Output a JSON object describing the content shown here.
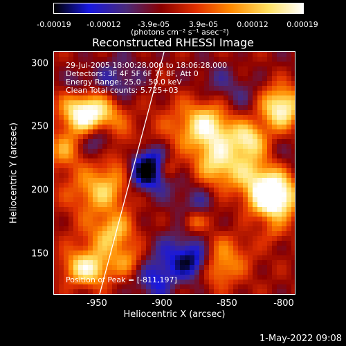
{
  "colorbar": {
    "ticks": [
      "-0.00019",
      "-0.00012",
      "-3.9e-05",
      "3.9e-05",
      "0.00012",
      "0.00019"
    ],
    "units_label": "(photons cm⁻² s⁻¹ asec⁻²)",
    "range": [
      -0.00019,
      0.00019
    ],
    "colormap": [
      "#000000",
      "#1818e0",
      "#4a2a7a",
      "#8a0000",
      "#e03000",
      "#ff8a00",
      "#ffe060",
      "#ffffff"
    ]
  },
  "title": "Reconstructed RHESSI Image",
  "annotations": {
    "time_range": "29-Jul-2005 18:00:28.000 to 18:06:28.000",
    "detectors": "Detectors: 3F 4F 5F 6F 7F 8F, Att 0",
    "energy_range": "Energy Range: 25.0 - 50.0 keV",
    "clean": "Clean    Total counts: 5.725+03",
    "peak": "Position of Peak = [-811,197]"
  },
  "axes": {
    "xlabel": "Heliocentric X (arcsec)",
    "ylabel": "Heliocentric Y (arcsec)",
    "xticks": [
      "-950",
      "-900",
      "-850",
      "-800"
    ],
    "yticks": [
      "300",
      "250",
      "200",
      "150"
    ],
    "xlim": [
      -980,
      -793
    ],
    "ylim": [
      117,
      309
    ]
  },
  "chart_data": {
    "type": "heatmap",
    "title": "Reconstructed RHESSI Image",
    "xlabel": "Heliocentric X (arcsec)",
    "ylabel": "Heliocentric Y (arcsec)",
    "xlim": [
      -980,
      -793
    ],
    "ylim": [
      117,
      309
    ],
    "value_range": [
      -0.00019,
      0.00019
    ],
    "peak_position": [
      -811,
      197
    ],
    "limb_line": {
      "points": [
        [
          -945,
          117
        ],
        [
          -895,
          309
        ]
      ]
    }
  },
  "footer": {
    "timestamp": "1-May-2022 09:08"
  }
}
